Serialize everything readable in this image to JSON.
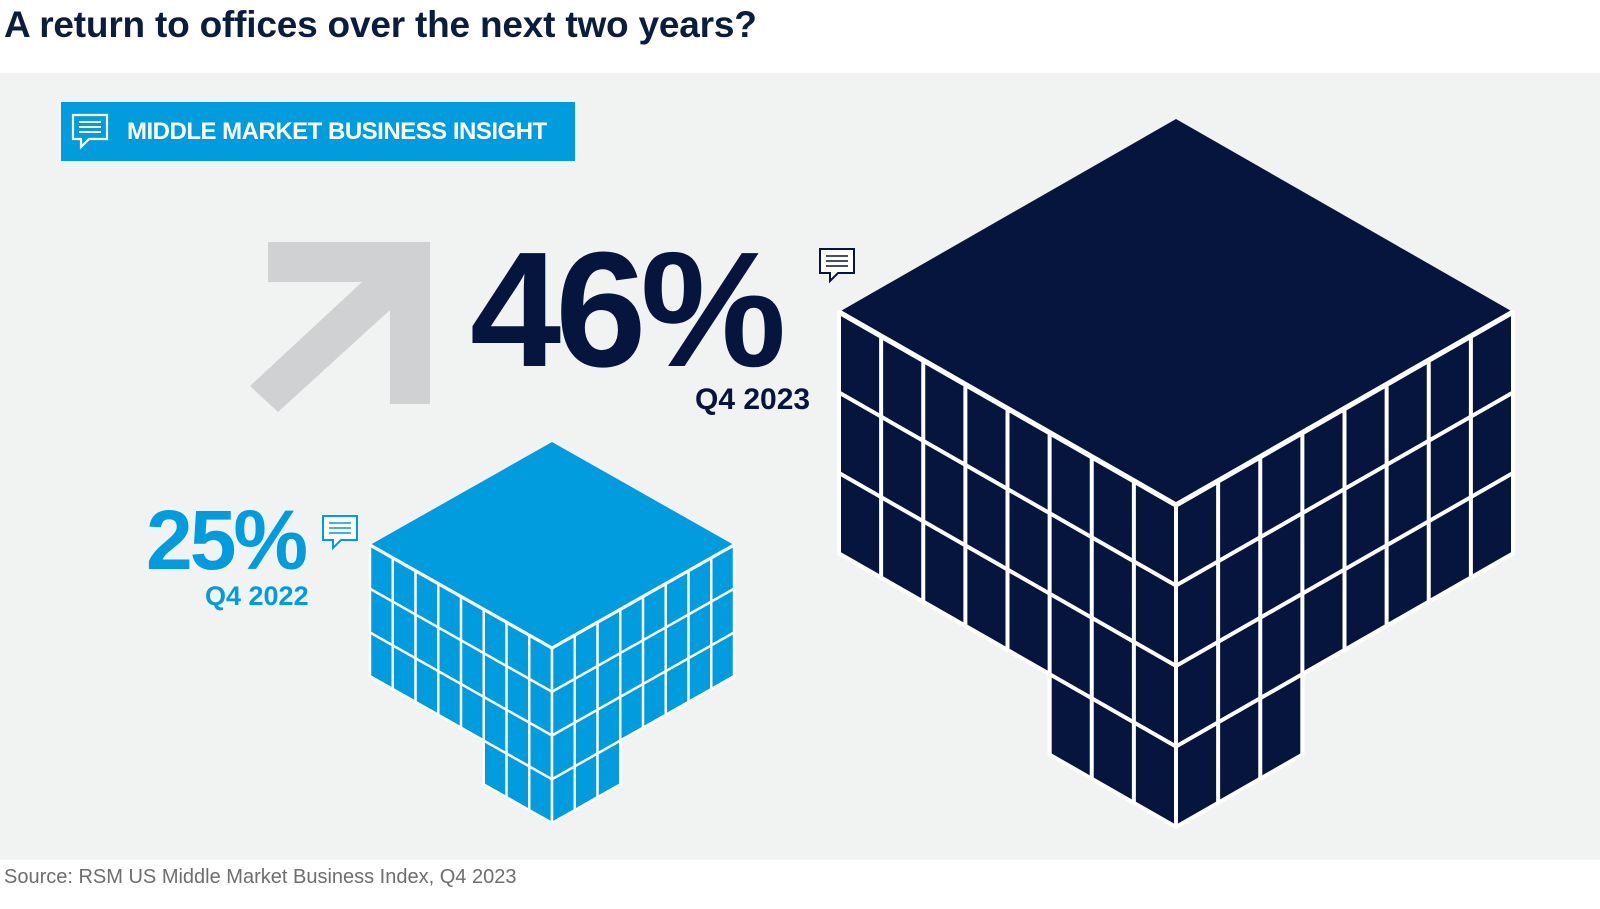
{
  "title": "A return to offices over the next two years?",
  "badge": {
    "label": "MIDDLE MARKET BUSINESS INSIGHT",
    "icon": "speech-bubble-icon"
  },
  "stats": [
    {
      "value": "46%",
      "period": "Q4 2023",
      "color": "#06153d"
    },
    {
      "value": "25%",
      "period": "Q4 2022",
      "color": "#009cde"
    }
  ],
  "trend_icon": "arrow-up-right-icon",
  "source": "Source: RSM US Middle Market Business Index, Q4 2023",
  "colors": {
    "navy": "#06153d",
    "blue": "#009cde",
    "grey_arrow": "#cfd1d2",
    "panel_bg": "#f1f2f2"
  }
}
